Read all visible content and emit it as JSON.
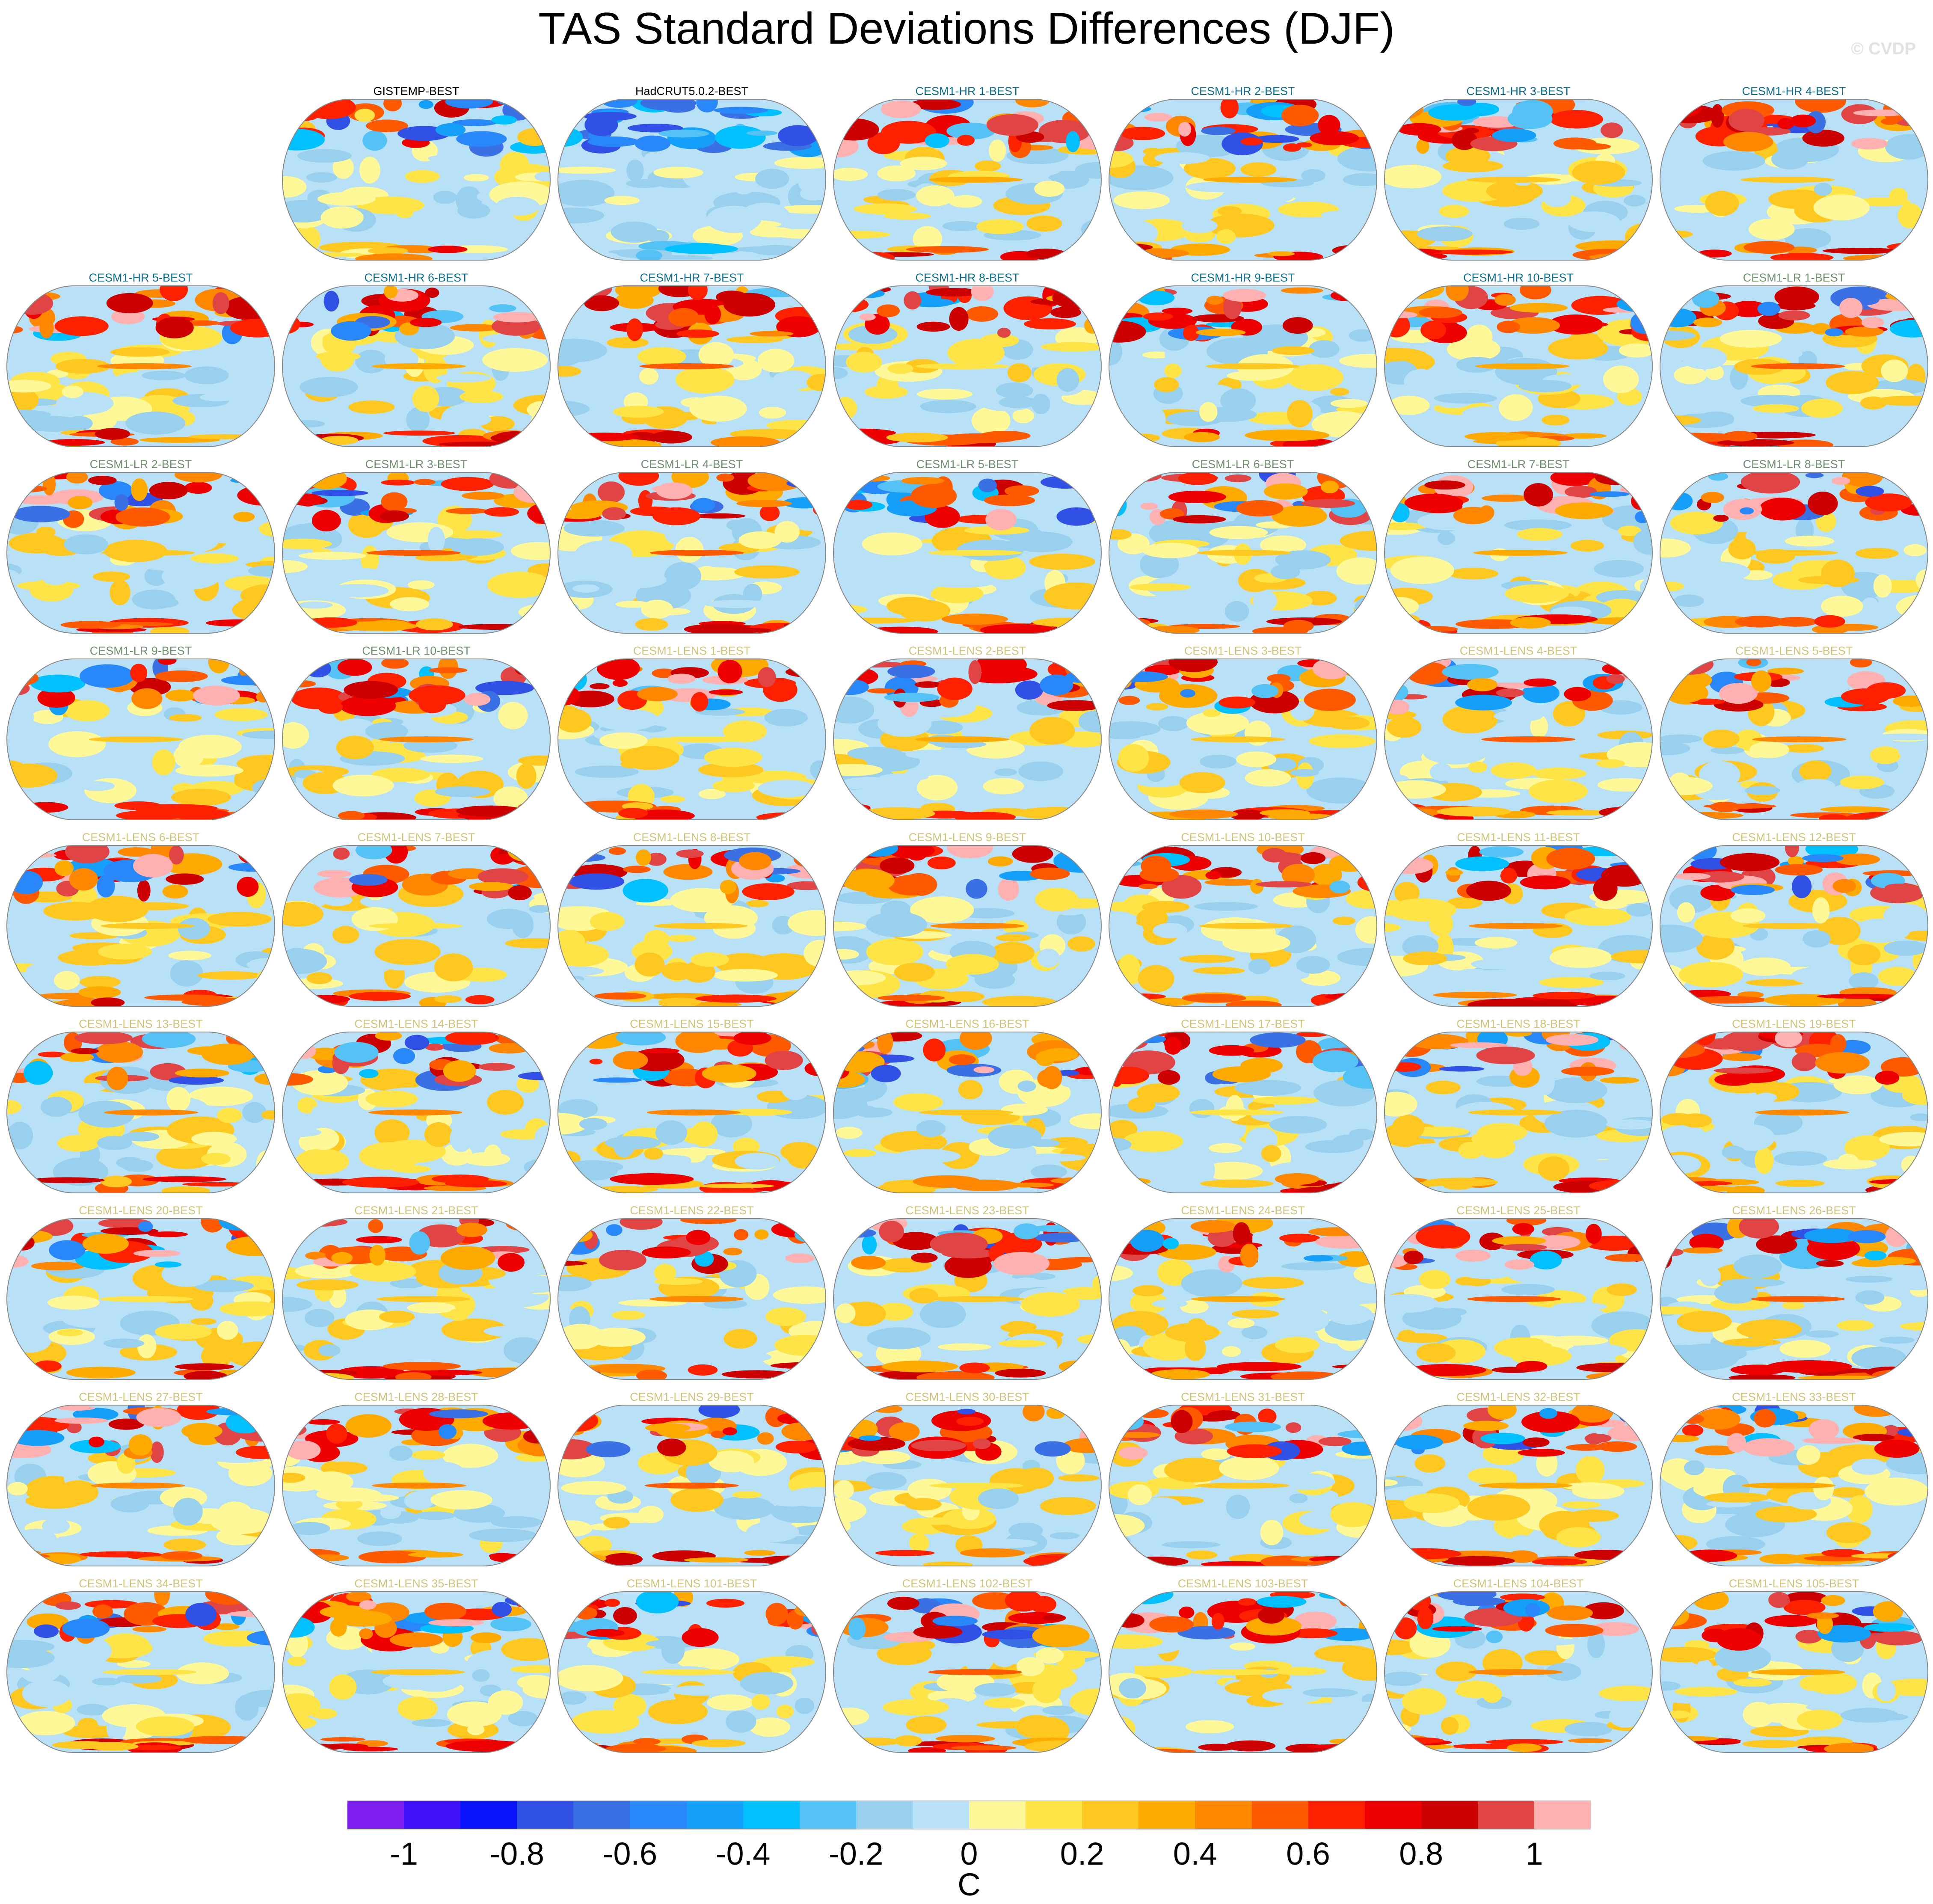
{
  "title": "TAS Standard Deviations Differences (DJF)",
  "watermark": "© CVDP",
  "group_colors": {
    "obs": "#000000",
    "hr": "#0e6e8e",
    "lr": "#6f8f6f",
    "lens": "#cfc47a"
  },
  "panels": [
    {
      "title": "GISTEMP-BEST",
      "group": "obs"
    },
    {
      "title": "HadCRUT5.0.2-BEST",
      "group": "obs"
    },
    {
      "title": "CESM1-HR 1-BEST",
      "group": "hr"
    },
    {
      "title": "CESM1-HR 2-BEST",
      "group": "hr"
    },
    {
      "title": "CESM1-HR 3-BEST",
      "group": "hr"
    },
    {
      "title": "CESM1-HR 4-BEST",
      "group": "hr"
    },
    {
      "title": "CESM1-HR 5-BEST",
      "group": "hr"
    },
    {
      "title": "CESM1-HR 6-BEST",
      "group": "hr"
    },
    {
      "title": "CESM1-HR 7-BEST",
      "group": "hr"
    },
    {
      "title": "CESM1-HR 8-BEST",
      "group": "hr"
    },
    {
      "title": "CESM1-HR 9-BEST",
      "group": "hr"
    },
    {
      "title": "CESM1-HR 10-BEST",
      "group": "hr"
    },
    {
      "title": "CESM1-LR 1-BEST",
      "group": "lr"
    },
    {
      "title": "CESM1-LR 2-BEST",
      "group": "lr"
    },
    {
      "title": "CESM1-LR 3-BEST",
      "group": "lr"
    },
    {
      "title": "CESM1-LR 4-BEST",
      "group": "lr"
    },
    {
      "title": "CESM1-LR 5-BEST",
      "group": "lr"
    },
    {
      "title": "CESM1-LR 6-BEST",
      "group": "lr"
    },
    {
      "title": "CESM1-LR 7-BEST",
      "group": "lr"
    },
    {
      "title": "CESM1-LR 8-BEST",
      "group": "lr"
    },
    {
      "title": "CESM1-LR 9-BEST",
      "group": "lr"
    },
    {
      "title": "CESM1-LR 10-BEST",
      "group": "lr"
    },
    {
      "title": "CESM1-LENS 1-BEST",
      "group": "lens"
    },
    {
      "title": "CESM1-LENS 2-BEST",
      "group": "lens"
    },
    {
      "title": "CESM1-LENS 3-BEST",
      "group": "lens"
    },
    {
      "title": "CESM1-LENS 4-BEST",
      "group": "lens"
    },
    {
      "title": "CESM1-LENS 5-BEST",
      "group": "lens"
    },
    {
      "title": "CESM1-LENS 6-BEST",
      "group": "lens"
    },
    {
      "title": "CESM1-LENS 7-BEST",
      "group": "lens"
    },
    {
      "title": "CESM1-LENS 8-BEST",
      "group": "lens"
    },
    {
      "title": "CESM1-LENS 9-BEST",
      "group": "lens"
    },
    {
      "title": "CESM1-LENS 10-BEST",
      "group": "lens"
    },
    {
      "title": "CESM1-LENS 11-BEST",
      "group": "lens"
    },
    {
      "title": "CESM1-LENS 12-BEST",
      "group": "lens"
    },
    {
      "title": "CESM1-LENS 13-BEST",
      "group": "lens"
    },
    {
      "title": "CESM1-LENS 14-BEST",
      "group": "lens"
    },
    {
      "title": "CESM1-LENS 15-BEST",
      "group": "lens"
    },
    {
      "title": "CESM1-LENS 16-BEST",
      "group": "lens"
    },
    {
      "title": "CESM1-LENS 17-BEST",
      "group": "lens"
    },
    {
      "title": "CESM1-LENS 18-BEST",
      "group": "lens"
    },
    {
      "title": "CESM1-LENS 19-BEST",
      "group": "lens"
    },
    {
      "title": "CESM1-LENS 20-BEST",
      "group": "lens"
    },
    {
      "title": "CESM1-LENS 21-BEST",
      "group": "lens"
    },
    {
      "title": "CESM1-LENS 22-BEST",
      "group": "lens"
    },
    {
      "title": "CESM1-LENS 23-BEST",
      "group": "lens"
    },
    {
      "title": "CESM1-LENS 24-BEST",
      "group": "lens"
    },
    {
      "title": "CESM1-LENS 25-BEST",
      "group": "lens"
    },
    {
      "title": "CESM1-LENS 26-BEST",
      "group": "lens"
    },
    {
      "title": "CESM1-LENS 27-BEST",
      "group": "lens"
    },
    {
      "title": "CESM1-LENS 28-BEST",
      "group": "lens"
    },
    {
      "title": "CESM1-LENS 29-BEST",
      "group": "lens"
    },
    {
      "title": "CESM1-LENS 30-BEST",
      "group": "lens"
    },
    {
      "title": "CESM1-LENS 31-BEST",
      "group": "lens"
    },
    {
      "title": "CESM1-LENS 32-BEST",
      "group": "lens"
    },
    {
      "title": "CESM1-LENS 33-BEST",
      "group": "lens"
    },
    {
      "title": "CESM1-LENS 34-BEST",
      "group": "lens"
    },
    {
      "title": "CESM1-LENS 35-BEST",
      "group": "lens"
    },
    {
      "title": "CESM1-LENS 101-BEST",
      "group": "lens"
    },
    {
      "title": "CESM1-LENS 102-BEST",
      "group": "lens"
    },
    {
      "title": "CESM1-LENS 103-BEST",
      "group": "lens"
    },
    {
      "title": "CESM1-LENS 104-BEST",
      "group": "lens"
    },
    {
      "title": "CESM1-LENS 105-BEST",
      "group": "lens"
    }
  ],
  "colorbar": {
    "unit": "C",
    "range": [
      -1.1,
      1.1
    ],
    "interval": 0.1,
    "tick_labels": [
      "-1",
      "-0.8",
      "-0.6",
      "-0.4",
      "-0.2",
      "0",
      "0.2",
      "0.4",
      "0.6",
      "0.8",
      "1"
    ],
    "colors": [
      "#8020f0",
      "#4010f8",
      "#0a14fa",
      "#3050e6",
      "#3a70e4",
      "#2888fa",
      "#14a0fa",
      "#00c0ff",
      "#55c2f5",
      "#98d0ee",
      "#b8e0f6",
      "#fff898",
      "#ffe448",
      "#ffc820",
      "#ffaa00",
      "#ff8800",
      "#ff5a00",
      "#ff2000",
      "#ee0000",
      "#cc0000",
      "#e04444",
      "#ffb0b0"
    ]
  }
}
